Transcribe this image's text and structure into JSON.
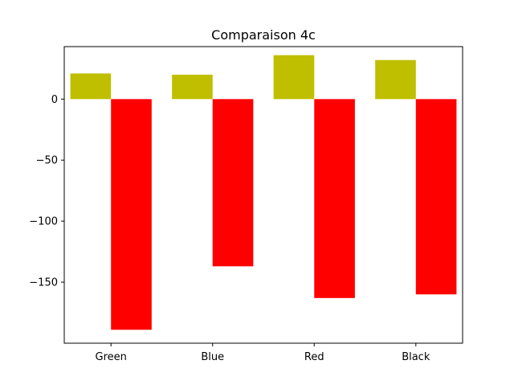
{
  "chart_data": {
    "type": "bar",
    "title": "Comparaison 4c",
    "xlabel": "",
    "ylabel": "",
    "categories": [
      "Green",
      "Blue",
      "Red",
      "Black"
    ],
    "series": [
      {
        "color": "#bfbf00",
        "values": [
          21,
          20,
          36,
          32
        ]
      },
      {
        "color": "#ff0000",
        "values": [
          -189,
          -137,
          -163,
          -160
        ]
      }
    ],
    "ylim": [
      -200,
      43
    ],
    "yticks": [
      0,
      -50,
      -100,
      -150
    ],
    "ytick_labels": [
      "0",
      "−50",
      "−100",
      "−150"
    ],
    "grid": false,
    "legend": "none"
  }
}
